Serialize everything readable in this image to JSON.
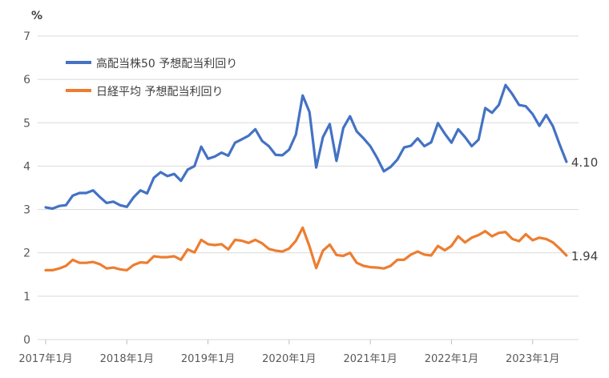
{
  "chart_data": {
    "type": "line",
    "title": "",
    "ylabel": "%",
    "xlabel": "",
    "ylim": [
      0,
      7
    ],
    "yticks": [
      "0",
      "1",
      "2",
      "3",
      "4",
      "5",
      "6",
      "7"
    ],
    "xticks": [
      {
        "label": "2017年1月",
        "x": 0
      },
      {
        "label": "2018年1月",
        "x": 12
      },
      {
        "label": "2019年1月",
        "x": 24
      },
      {
        "label": "2020年1月",
        "x": 36
      },
      {
        "label": "2021年1月",
        "x": 48
      },
      {
        "label": "2022年1月",
        "x": 60
      },
      {
        "label": "2023年1月",
        "x": 72
      }
    ],
    "grid": true,
    "legend_position": "top-left",
    "series": [
      {
        "name": "高配当株50  予想配当利回り",
        "color": "#4472C4",
        "end_label": "4.10",
        "values": [
          3.05,
          3.02,
          3.08,
          3.1,
          3.32,
          3.38,
          3.38,
          3.44,
          3.29,
          3.15,
          3.18,
          3.1,
          3.06,
          3.28,
          3.44,
          3.37,
          3.73,
          3.86,
          3.77,
          3.82,
          3.66,
          3.92,
          4.0,
          4.45,
          4.17,
          4.22,
          4.31,
          4.24,
          4.54,
          4.62,
          4.7,
          4.85,
          4.58,
          4.46,
          4.26,
          4.25,
          4.38,
          4.73,
          5.63,
          5.25,
          3.97,
          4.67,
          4.97,
          4.12,
          4.88,
          5.15,
          4.8,
          4.64,
          4.46,
          4.19,
          3.88,
          3.98,
          4.15,
          4.43,
          4.47,
          4.64,
          4.46,
          4.55,
          4.99,
          4.75,
          4.54,
          4.85,
          4.67,
          4.46,
          4.61,
          5.34,
          5.23,
          5.41,
          5.87,
          5.66,
          5.41,
          5.38,
          5.2,
          4.93,
          5.18,
          4.92,
          4.5,
          4.1
        ]
      },
      {
        "name": "日経平均  予想配当利回り",
        "color": "#ED7D31",
        "end_label": "1.94",
        "values": [
          1.6,
          1.6,
          1.64,
          1.7,
          1.84,
          1.77,
          1.77,
          1.79,
          1.74,
          1.64,
          1.66,
          1.62,
          1.6,
          1.72,
          1.78,
          1.77,
          1.92,
          1.9,
          1.9,
          1.92,
          1.84,
          2.08,
          2.01,
          2.3,
          2.2,
          2.18,
          2.2,
          2.08,
          2.3,
          2.28,
          2.23,
          2.3,
          2.22,
          2.09,
          2.05,
          2.03,
          2.1,
          2.28,
          2.58,
          2.15,
          1.65,
          2.05,
          2.19,
          1.95,
          1.93,
          2.0,
          1.77,
          1.7,
          1.67,
          1.66,
          1.64,
          1.7,
          1.84,
          1.84,
          1.96,
          2.03,
          1.96,
          1.94,
          2.16,
          2.06,
          2.16,
          2.38,
          2.24,
          2.35,
          2.41,
          2.5,
          2.38,
          2.46,
          2.48,
          2.32,
          2.27,
          2.43,
          2.29,
          2.35,
          2.32,
          2.24,
          2.1,
          1.94
        ]
      }
    ]
  }
}
